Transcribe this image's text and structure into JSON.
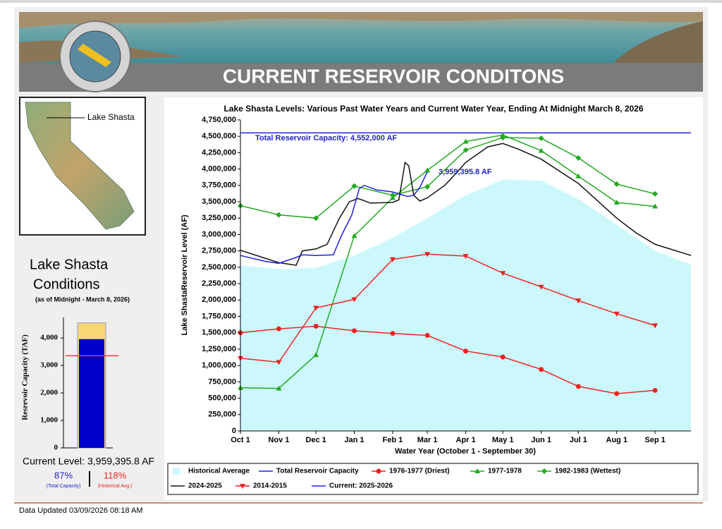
{
  "header": {
    "title": "CURRENT RESERVOIR CONDITONS"
  },
  "map": {
    "label": "Lake Shasta"
  },
  "conditions": {
    "title_line1": "Lake Shasta",
    "title_line2": "Conditions",
    "as_of": "(as of Midnight - March 8, 2026)",
    "current_level_label": "Current Level:",
    "current_level_value": "3,959,395.8 AF",
    "pct_capacity": "87%",
    "pct_capacity_label": "(Total Capacity)",
    "pct_historical": "118%",
    "pct_historical_label": "(Historical Avg.)"
  },
  "footer": {
    "updated": "Data Updated 03/09/2026 08:18 AM"
  },
  "chart_data": [
    {
      "type": "gauge",
      "y_label": "Resrevoir Capacity (TAF)",
      "ylim": [
        0,
        4750
      ],
      "yticks": [
        0,
        {
          "value": 1000,
          "label": "1,000"
        },
        {
          "value": 2000,
          "label": "2,000"
        },
        {
          "value": 3000,
          "label": "3,000"
        },
        {
          "value": 4000,
          "label": "4,000"
        }
      ],
      "capacity": 4552,
      "current": 3959.4,
      "historical_average": 3355,
      "capacity_color": "#f7d774",
      "current_color": "#0000cc",
      "average_color": "#ff3333"
    },
    {
      "type": "line",
      "title": "Lake Shasta Levels: Various Past Water Years and Current Water Year, Ending At Midnight March 8, 2026",
      "x_label": "Water Year (October 1 - September 30)",
      "y_label": "Lake ShastaReservoir Level (AF)",
      "xlim": [
        0,
        364
      ],
      "xticks": [
        {
          "value": 0,
          "label": "Oct 1"
        },
        {
          "value": 31,
          "label": "Nov 1"
        },
        {
          "value": 61,
          "label": "Dec 1"
        },
        {
          "value": 92,
          "label": "Jan 1"
        },
        {
          "value": 123,
          "label": "Feb 1"
        },
        {
          "value": 151,
          "label": "Mar 1"
        },
        {
          "value": 182,
          "label": "Apr 1"
        },
        {
          "value": 212,
          "label": "May 1"
        },
        {
          "value": 243,
          "label": "Jun 1"
        },
        {
          "value": 273,
          "label": "Jul 1"
        },
        {
          "value": 304,
          "label": "Aug 1"
        },
        {
          "value": 335,
          "label": "Sep 1"
        }
      ],
      "ylim": [
        0,
        4750000
      ],
      "yticks": [
        0,
        {
          "value": 250000,
          "label": "250,000"
        },
        {
          "value": 500000,
          "label": "500,000"
        },
        {
          "value": 750000,
          "label": "750,000"
        },
        {
          "value": 1000000,
          "label": "1,000,000"
        },
        {
          "value": 1250000,
          "label": "1,250,000"
        },
        {
          "value": 1500000,
          "label": "1,500,000"
        },
        {
          "value": 1750000,
          "label": "1,750,000"
        },
        {
          "value": 2000000,
          "label": "2,000,000"
        },
        {
          "value": 2250000,
          "label": "2,250,000"
        },
        {
          "value": 2500000,
          "label": "2,500,000"
        },
        {
          "value": 2750000,
          "label": "2,750,000"
        },
        {
          "value": 3000000,
          "label": "3,000,000"
        },
        {
          "value": 3250000,
          "label": "3,250,000"
        },
        {
          "value": 3500000,
          "label": "3,500,000"
        },
        {
          "value": 3750000,
          "label": "3,750,000"
        },
        {
          "value": 4000000,
          "label": "4,000,000"
        },
        {
          "value": 4250000,
          "label": "4,250,000"
        },
        {
          "value": 4500000,
          "label": "4,500,000"
        },
        {
          "value": 4750000,
          "label": "4,750,000"
        }
      ],
      "annotations": [
        {
          "text": "Total Reservoir Capacity: 4,552,000 AF",
          "color": "#2222cc"
        },
        {
          "text": "3,959,395.8 AF",
          "color": "#2222cc"
        }
      ],
      "series": [
        {
          "name": "Historical Average",
          "color": "#ccf8fc",
          "area": true,
          "marker": null,
          "x": [
            0,
            31,
            61,
            92,
            123,
            151,
            182,
            212,
            243,
            273,
            304,
            335,
            364
          ],
          "values": [
            2530000,
            2470000,
            2490000,
            2680000,
            2950000,
            3250000,
            3600000,
            3840000,
            3820000,
            3540000,
            3150000,
            2750000,
            2540000
          ]
        },
        {
          "name": "Total Reservoir Capacity",
          "color": "#2222dd",
          "marker": null,
          "x": [
            0,
            364
          ],
          "values": [
            4552000,
            4552000
          ]
        },
        {
          "name": "1976-1977 (Driest)",
          "color": "#ee2222",
          "marker": "circle",
          "x": [
            0,
            31,
            61,
            92,
            123,
            151,
            182,
            212,
            243,
            273,
            304,
            335
          ],
          "values": [
            1500000,
            1560000,
            1600000,
            1530000,
            1490000,
            1460000,
            1220000,
            1130000,
            940000,
            680000,
            570000,
            620000
          ]
        },
        {
          "name": "1977-1978",
          "color": "#22aa22",
          "marker": "triangle-up",
          "x": [
            0,
            31,
            61,
            92,
            123,
            151,
            182,
            212,
            243,
            273,
            304,
            335
          ],
          "values": [
            660000,
            650000,
            1160000,
            2980000,
            3560000,
            3980000,
            4420000,
            4520000,
            4280000,
            3890000,
            3490000,
            3430000
          ]
        },
        {
          "name": "1982-1983 (Wettest)",
          "color": "#22aa22",
          "marker": "diamond",
          "x": [
            0,
            31,
            61,
            92,
            123,
            151,
            182,
            212,
            243,
            273,
            304,
            335
          ],
          "values": [
            3440000,
            3300000,
            3250000,
            3740000,
            3600000,
            3730000,
            4290000,
            4480000,
            4470000,
            4170000,
            3770000,
            3620000
          ]
        },
        {
          "name": "2024-2025",
          "color": "#111111",
          "marker": null,
          "x": [
            0,
            31,
            45,
            50,
            61,
            70,
            80,
            88,
            95,
            105,
            123,
            128,
            133,
            136,
            140,
            145,
            151,
            165,
            175,
            182,
            200,
            212,
            225,
            243,
            273,
            304,
            320,
            335,
            364
          ],
          "values": [
            2760000,
            2570000,
            2530000,
            2750000,
            2780000,
            2850000,
            3250000,
            3500000,
            3550000,
            3480000,
            3490000,
            3530000,
            4100000,
            4050000,
            3600000,
            3510000,
            3560000,
            3750000,
            3950000,
            4100000,
            4340000,
            4390000,
            4300000,
            4150000,
            3780000,
            3250000,
            3020000,
            2850000,
            2680000
          ]
        },
        {
          "name": "2014-2015",
          "color": "#ee2222",
          "marker": "triangle-down",
          "x": [
            0,
            31,
            61,
            92,
            123,
            151,
            182,
            212,
            243,
            273,
            304,
            335
          ],
          "values": [
            1110000,
            1050000,
            1880000,
            2010000,
            2620000,
            2700000,
            2670000,
            2410000,
            2200000,
            1990000,
            1790000,
            1610000
          ]
        },
        {
          "name": "Current: 2025-2026",
          "color": "#2222dd",
          "marker": null,
          "x": [
            0,
            20,
            31,
            45,
            50,
            61,
            75,
            82,
            90,
            96,
            100,
            110,
            123,
            135,
            140,
            145,
            151
          ],
          "values": [
            2680000,
            2590000,
            2560000,
            2650000,
            2690000,
            2680000,
            2690000,
            3000000,
            3300000,
            3700000,
            3750000,
            3680000,
            3650000,
            3580000,
            3600000,
            3720000,
            3959396
          ]
        }
      ]
    }
  ]
}
